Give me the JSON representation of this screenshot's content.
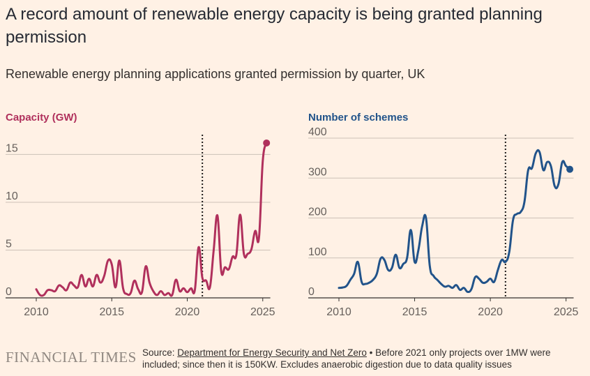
{
  "header": {
    "title": "A record amount of renewable energy capacity is being granted planning permission",
    "subtitle": "Renewable energy planning applications granted permission by quarter, UK"
  },
  "footer": {
    "logo": "FINANCIAL TIMES",
    "source_prefix": "Source: ",
    "source_link": "Department for Energy Security and Net Zero",
    "source_note": " • Before 2021 only projects over 1MW were included; since then it is 150KW. Excludes anaerobic digestion due to data quality issues"
  },
  "colors": {
    "background": "#FFF1E5",
    "capacity": "#B0305C",
    "schemes": "#21538A",
    "grid": "#CCC1B7",
    "axis": "#33302E"
  },
  "chart_data": [
    {
      "type": "line",
      "label": "Capacity (GW)",
      "xlim": [
        2010,
        2025.5
      ],
      "ylim": [
        0,
        17
      ],
      "x_ticks": [
        2010,
        2015,
        2020,
        2025
      ],
      "y_ticks": [
        0,
        5,
        10,
        15
      ],
      "marker_x": 2021,
      "grid": true,
      "end_dot": true,
      "series": [
        {
          "x": [
            2010.0,
            2010.25,
            2010.5,
            2010.75,
            2011.0,
            2011.25,
            2011.5,
            2011.75,
            2012.0,
            2012.25,
            2012.5,
            2012.75,
            2013.0,
            2013.25,
            2013.5,
            2013.75,
            2014.0,
            2014.25,
            2014.5,
            2014.75,
            2015.0,
            2015.25,
            2015.5,
            2015.75,
            2016.0,
            2016.25,
            2016.5,
            2016.75,
            2017.0,
            2017.25,
            2017.5,
            2017.75,
            2018.0,
            2018.25,
            2018.5,
            2018.75,
            2019.0,
            2019.25,
            2019.5,
            2019.75,
            2020.0,
            2020.25,
            2020.5,
            2020.75,
            2021.0,
            2021.25,
            2021.5,
            2021.75,
            2022.0,
            2022.25,
            2022.5,
            2022.75,
            2023.0,
            2023.25,
            2023.5,
            2023.75,
            2024.0,
            2024.25,
            2024.5,
            2024.75,
            2025.0,
            2025.25
          ],
          "values": [
            0.9,
            0.3,
            0.3,
            0.8,
            0.8,
            0.7,
            1.3,
            1.1,
            0.8,
            1.6,
            1.3,
            1.1,
            2.4,
            1.2,
            2.0,
            1.2,
            2.4,
            1.6,
            2.3,
            3.9,
            3.5,
            1.1,
            3.9,
            1.0,
            0.4,
            0.5,
            1.8,
            0.9,
            0.6,
            3.3,
            1.6,
            0.7,
            0.3,
            0.7,
            0.3,
            0.5,
            0.3,
            1.9,
            0.7,
            1.0,
            0.6,
            1.0,
            0.8,
            5.3,
            2.1,
            1.8,
            1.1,
            5.0,
            8.6,
            2.8,
            3.2,
            3.0,
            4.3,
            4.5,
            8.7,
            4.6,
            4.6,
            5.1,
            7.0,
            6.3,
            14.3,
            16.2
          ]
        }
      ]
    },
    {
      "type": "line",
      "label": "Number of schemes",
      "xlim": [
        2010,
        2025.5
      ],
      "ylim": [
        0,
        400
      ],
      "x_ticks": [
        2010,
        2015,
        2020,
        2025
      ],
      "y_ticks": [
        0,
        100,
        200,
        300,
        400
      ],
      "marker_x": 2021,
      "grid": true,
      "end_dot": true,
      "series": [
        {
          "x": [
            2010.0,
            2010.25,
            2010.5,
            2010.75,
            2011.0,
            2011.25,
            2011.5,
            2011.75,
            2012.0,
            2012.25,
            2012.5,
            2012.75,
            2013.0,
            2013.25,
            2013.5,
            2013.75,
            2014.0,
            2014.25,
            2014.5,
            2014.75,
            2015.0,
            2015.25,
            2015.5,
            2015.75,
            2016.0,
            2016.25,
            2016.5,
            2016.75,
            2017.0,
            2017.25,
            2017.5,
            2017.75,
            2018.0,
            2018.25,
            2018.5,
            2018.75,
            2019.0,
            2019.25,
            2019.5,
            2019.75,
            2020.0,
            2020.25,
            2020.5,
            2020.75,
            2021.0,
            2021.25,
            2021.5,
            2021.75,
            2022.0,
            2022.25,
            2022.5,
            2022.75,
            2023.0,
            2023.25,
            2023.5,
            2023.75,
            2024.0,
            2024.25,
            2024.5,
            2024.75,
            2025.0,
            2025.25
          ],
          "values": [
            25,
            26,
            30,
            45,
            60,
            90,
            40,
            35,
            38,
            45,
            60,
            98,
            95,
            70,
            75,
            108,
            75,
            85,
            100,
            170,
            90,
            120,
            180,
            200,
            80,
            55,
            45,
            35,
            28,
            30,
            25,
            32,
            20,
            25,
            15,
            22,
            52,
            48,
            38,
            40,
            48,
            40,
            70,
            95,
            90,
            115,
            195,
            210,
            215,
            240,
            320,
            325,
            362,
            365,
            320,
            340,
            330,
            280,
            285,
            340,
            330,
            322
          ]
        }
      ]
    }
  ]
}
